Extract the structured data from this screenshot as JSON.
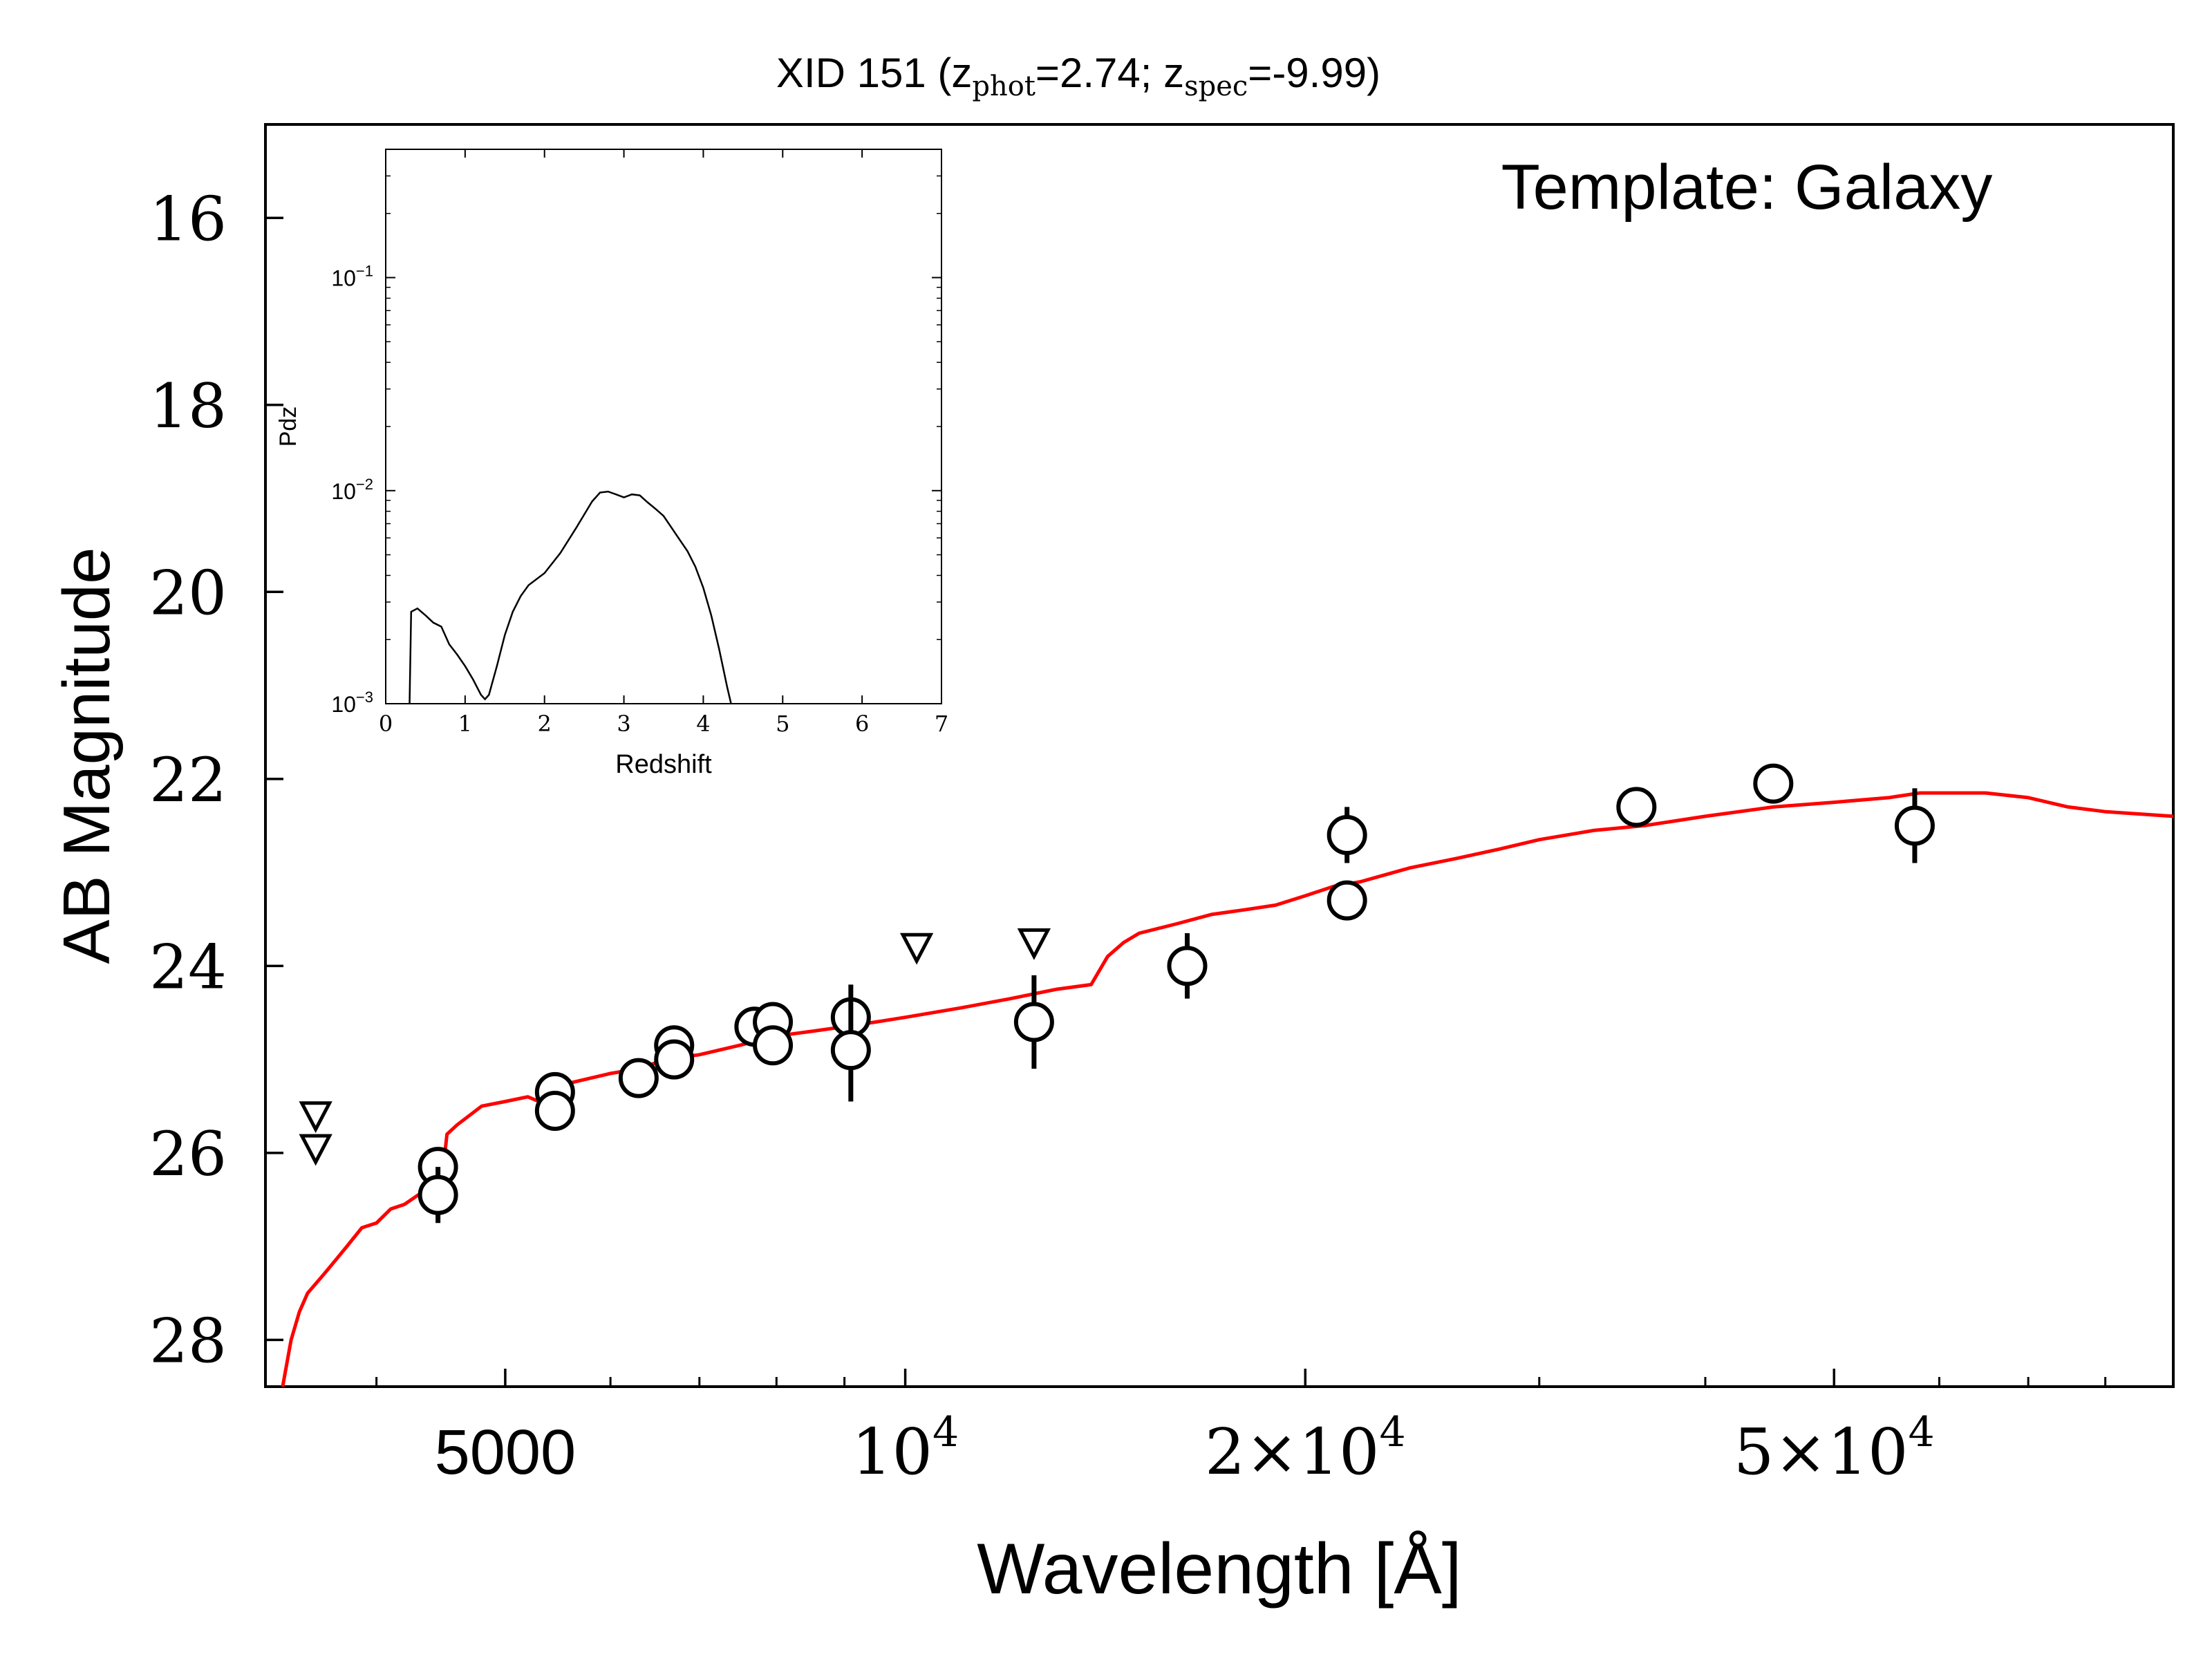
{
  "chart_data": [
    {
      "id": "sed",
      "type": "scatter",
      "title": {
        "main": "XID 151 (",
        "z": "z",
        "phot_sub": "phot",
        "phot_val": "=2.74; ",
        "spec_sub": "spec",
        "spec_val": "=-9.99)"
      },
      "xlabel": "Wavelength [Å]",
      "ylabel": "AB Magnitude",
      "annotation": "Template: Galaxy",
      "x_scale": "log",
      "xlim": [
        3300,
        90000
      ],
      "ylim": [
        28.5,
        15.0
      ],
      "y_inverted": true,
      "x_ticks": [
        {
          "value": 5000,
          "label": "5000"
        },
        {
          "value": 10000,
          "base": "10",
          "exp": "4"
        },
        {
          "value": 20000,
          "base": "2×10",
          "exp": "4"
        },
        {
          "value": 50000,
          "base": "5×10",
          "exp": "4"
        }
      ],
      "y_ticks": [
        {
          "value": 16,
          "label": "16"
        },
        {
          "value": 18,
          "label": "18"
        },
        {
          "value": 20,
          "label": "20"
        },
        {
          "value": 22,
          "label": "22"
        },
        {
          "value": 24,
          "label": "24"
        },
        {
          "value": 26,
          "label": "26"
        },
        {
          "value": 28,
          "label": "28"
        }
      ],
      "detections": [
        {
          "x": 4450,
          "y": 26.15,
          "err": 0.15
        },
        {
          "x": 4450,
          "y": 26.45,
          "err": 0.3
        },
        {
          "x": 5450,
          "y": 25.35,
          "err": 0.1
        },
        {
          "x": 5450,
          "y": 25.55,
          "err": 0.1
        },
        {
          "x": 6300,
          "y": 25.2,
          "err": 0.1
        },
        {
          "x": 6700,
          "y": 24.85,
          "err": 0.1
        },
        {
          "x": 6700,
          "y": 25.0,
          "err": 0.1
        },
        {
          "x": 7700,
          "y": 24.65,
          "err": 0.1
        },
        {
          "x": 7950,
          "y": 24.6,
          "err": 0.1
        },
        {
          "x": 7950,
          "y": 24.85,
          "err": 0.1
        },
        {
          "x": 9100,
          "y": 24.55,
          "err": 0.35
        },
        {
          "x": 9100,
          "y": 24.9,
          "err": 0.55
        },
        {
          "x": 12500,
          "y": 24.6,
          "err": 0.5
        },
        {
          "x": 16300,
          "y": 24.0,
          "err": 0.35
        },
        {
          "x": 21500,
          "y": 22.6,
          "err": 0.3
        },
        {
          "x": 21500,
          "y": 23.3,
          "err": 0.1
        },
        {
          "x": 35500,
          "y": 22.3,
          "err": 0.1
        },
        {
          "x": 45000,
          "y": 22.05,
          "err": 0.1
        },
        {
          "x": 57500,
          "y": 22.5,
          "err": 0.4
        }
      ],
      "upper_limits": [
        {
          "x": 3600,
          "y": 25.6
        },
        {
          "x": 3600,
          "y": 25.95
        },
        {
          "x": 10200,
          "y": 23.8
        },
        {
          "x": 12500,
          "y": 23.75
        }
      ],
      "template": {
        "color": "#ff0000",
        "x": [
          3400,
          3450,
          3500,
          3550,
          3600,
          3650,
          3700,
          3800,
          3900,
          4000,
          4100,
          4200,
          4300,
          4400,
          4480,
          4520,
          4600,
          4800,
          5000,
          5200,
          5300,
          5450,
          5600,
          5800,
          6000,
          6300,
          6600,
          7000,
          7500,
          8000,
          8500,
          9000,
          9500,
          10000,
          11000,
          12000,
          13000,
          13800,
          14200,
          14600,
          15000,
          16000,
          17000,
          18000,
          19000,
          20000,
          21000,
          22000,
          24000,
          26000,
          28000,
          30000,
          33000,
          36000,
          40000,
          45000,
          50000,
          55000,
          58000,
          61000,
          65000,
          70000,
          75000,
          80000,
          90000
        ],
        "y": [
          28.5,
          28.0,
          27.7,
          27.5,
          27.4,
          27.3,
          27.2,
          27.0,
          26.8,
          26.75,
          26.6,
          26.55,
          26.45,
          26.4,
          26.3,
          25.8,
          25.7,
          25.5,
          25.45,
          25.4,
          25.45,
          25.35,
          25.25,
          25.2,
          25.15,
          25.1,
          25.0,
          24.95,
          24.85,
          24.75,
          24.7,
          24.65,
          24.6,
          24.55,
          24.45,
          24.35,
          24.25,
          24.2,
          23.9,
          23.75,
          23.65,
          23.55,
          23.45,
          23.4,
          23.35,
          23.25,
          23.15,
          23.1,
          22.95,
          22.85,
          22.75,
          22.65,
          22.55,
          22.5,
          22.4,
          22.3,
          22.25,
          22.2,
          22.15,
          22.15,
          22.15,
          22.2,
          22.3,
          22.35,
          22.4
        ]
      }
    },
    {
      "id": "inset",
      "type": "line",
      "xlabel": "Redshift",
      "ylabel": "Pdz",
      "y_scale": "log",
      "xlim": [
        0,
        7
      ],
      "ylim": [
        0.001,
        0.4
      ],
      "x_ticks": [
        0,
        1,
        2,
        3,
        4,
        5,
        6,
        7
      ],
      "y_ticks": [
        {
          "value": 0.1,
          "base": "10",
          "exp": "−1"
        },
        {
          "value": 0.01,
          "base": "10",
          "exp": "−2"
        },
        {
          "value": 0.001,
          "base": "10",
          "exp": "−3"
        }
      ],
      "x": [
        0.3,
        0.32,
        0.4,
        0.5,
        0.6,
        0.7,
        0.8,
        0.9,
        1.0,
        1.1,
        1.2,
        1.25,
        1.3,
        1.4,
        1.5,
        1.6,
        1.7,
        1.8,
        2.0,
        2.2,
        2.4,
        2.6,
        2.7,
        2.8,
        2.9,
        3.0,
        3.1,
        3.2,
        3.3,
        3.4,
        3.5,
        3.6,
        3.7,
        3.8,
        3.9,
        4.0,
        4.1,
        4.2,
        4.3,
        4.35
      ],
      "y": [
        0.001,
        0.0027,
        0.0028,
        0.0026,
        0.0024,
        0.0023,
        0.0019,
        0.0017,
        0.0015,
        0.0013,
        0.0011,
        0.00105,
        0.0011,
        0.0015,
        0.0021,
        0.0027,
        0.0032,
        0.0036,
        0.0041,
        0.0051,
        0.0067,
        0.0089,
        0.0098,
        0.0099,
        0.0096,
        0.0093,
        0.0096,
        0.0095,
        0.0088,
        0.0082,
        0.0076,
        0.0067,
        0.0059,
        0.0052,
        0.0044,
        0.0035,
        0.0026,
        0.0018,
        0.0012,
        0.001
      ]
    }
  ]
}
